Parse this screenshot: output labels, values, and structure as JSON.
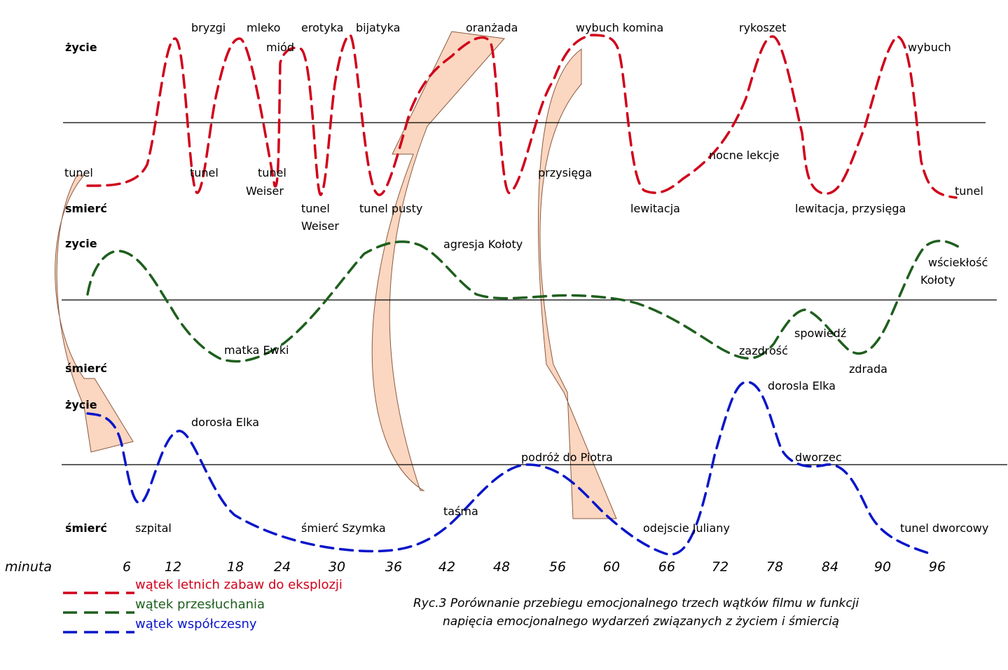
{
  "chart_data": {
    "type": "line",
    "title": "",
    "xlabel": "minuta",
    "ylabel": "",
    "x_ticks": [
      "6",
      "12",
      "18",
      "24",
      "30",
      "36",
      "42",
      "48",
      "56",
      "60",
      "66",
      "72",
      "78",
      "84",
      "90",
      "96"
    ],
    "level_labels": {
      "red_top": "życie",
      "red_bottom": "smierć",
      "green_top": "zycie",
      "green_bottom": "śmierć",
      "blue_top": "życie",
      "blue_bottom": "śmierć"
    },
    "series": [
      {
        "name": "wątek letnich zabaw do eksplozji",
        "color": "#d0021b",
        "annotations": [
          "bryzgi",
          "mleko",
          "miód",
          "erotyka",
          "bijatyka",
          "oranżada",
          "wybuch komina",
          "rykoszet",
          "wybuch",
          "tunel",
          "tunel",
          "tunel",
          "Weiser",
          "tunel",
          "Weiser",
          "tunel pusty",
          "przysięga",
          "lewitacja",
          "nocne lekcje",
          "lewitacja, przysięga",
          "tunel"
        ]
      },
      {
        "name": "wątek przesłuchania",
        "color": "#1e5f1e",
        "annotations": [
          "agresja  Kołoty",
          "wściekłość",
          "Kołoty",
          "matka Ewki",
          "zazdrość",
          "spowiedź",
          "zdrada"
        ]
      },
      {
        "name": "wątek współczesny",
        "color": "#0a16c8",
        "annotations": [
          "dorosła Elka",
          "dorosla Elka",
          "podróż do Piotra",
          "dworzec",
          "szpital",
          "śmierć Szymka",
          "taśma",
          "odejscie Juliany",
          "tunel dworcowy"
        ]
      }
    ],
    "grid": false
  },
  "caption": {
    "line1": "Ryc.3 Porównanie przebiegu emocjonalnego trzech wątków filmu w funkcji",
    "line2": "napięcia emocjonalnego wydarzeń związanych z życiem i śmiercią"
  }
}
